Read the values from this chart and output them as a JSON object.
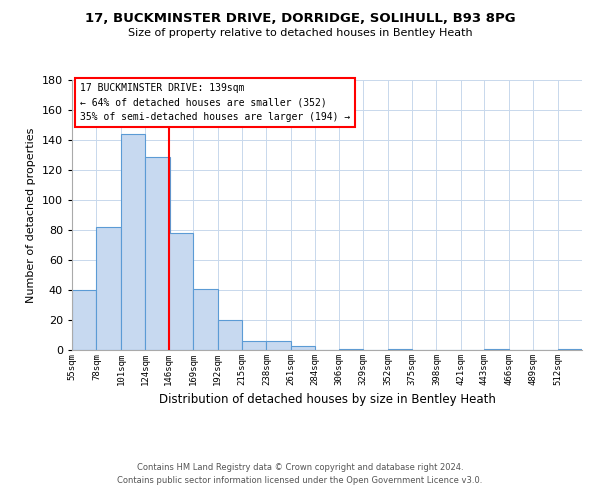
{
  "title": "17, BUCKMINSTER DRIVE, DORRIDGE, SOLIHULL, B93 8PG",
  "subtitle": "Size of property relative to detached houses in Bentley Heath",
  "xlabel": "Distribution of detached houses by size in Bentley Heath",
  "ylabel": "Number of detached properties",
  "bin_labels": [
    "55sqm",
    "78sqm",
    "101sqm",
    "124sqm",
    "146sqm",
    "169sqm",
    "192sqm",
    "215sqm",
    "238sqm",
    "261sqm",
    "284sqm",
    "306sqm",
    "329sqm",
    "352sqm",
    "375sqm",
    "398sqm",
    "421sqm",
    "443sqm",
    "466sqm",
    "489sqm",
    "512sqm"
  ],
  "bar_values": [
    40,
    82,
    144,
    129,
    78,
    41,
    20,
    6,
    6,
    3,
    0,
    1,
    0,
    1,
    0,
    0,
    0,
    1,
    0,
    0,
    1
  ],
  "bar_color": "#c7d9f0",
  "bar_edge_color": "#5b9bd5",
  "bin_edges": [
    55,
    78,
    101,
    124,
    146,
    169,
    192,
    215,
    238,
    261,
    284,
    306,
    329,
    352,
    375,
    398,
    421,
    443,
    466,
    489,
    512
  ],
  "red_line_x": 146,
  "ylim": [
    0,
    180
  ],
  "yticks": [
    0,
    20,
    40,
    60,
    80,
    100,
    120,
    140,
    160,
    180
  ],
  "annotation_title": "17 BUCKMINSTER DRIVE: 139sqm",
  "annotation_line1": "← 64% of detached houses are smaller (352)",
  "annotation_line2": "35% of semi-detached houses are larger (194) →",
  "footer_line1": "Contains HM Land Registry data © Crown copyright and database right 2024.",
  "footer_line2": "Contains public sector information licensed under the Open Government Licence v3.0.",
  "bg_color": "#ffffff",
  "grid_color": "#c8d8ec"
}
